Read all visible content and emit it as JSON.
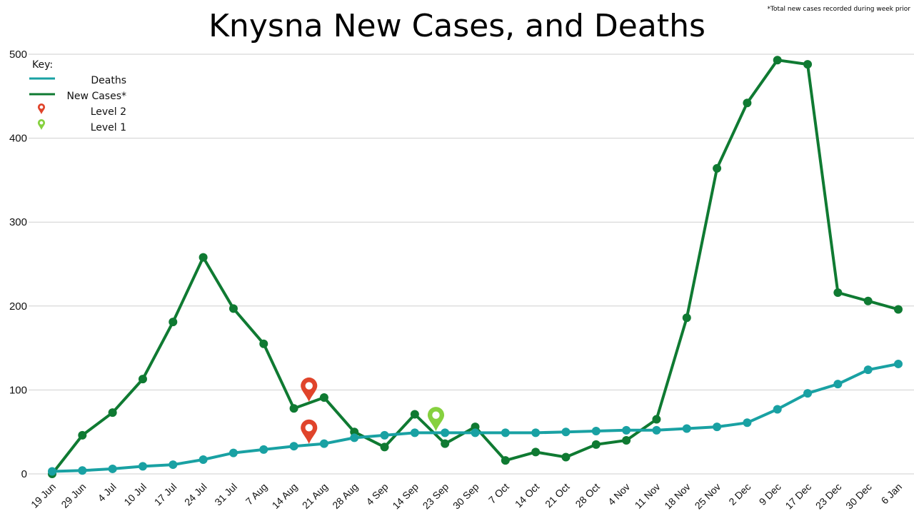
{
  "chart_data": {
    "type": "line",
    "title": "Knysna New Cases, and Deaths",
    "footnote": "*Total new cases recorded during week prior",
    "xlabel": "",
    "ylabel": "",
    "ylim": [
      0,
      500
    ],
    "yticks": [
      0,
      100,
      200,
      300,
      400,
      500
    ],
    "grid": true,
    "legend": {
      "title": "Key:",
      "placement": "top-left",
      "entries": [
        {
          "label": "Deaths",
          "kind": "line",
          "color": "#19a1a3"
        },
        {
          "label": "New Cases*",
          "kind": "line",
          "color": "#0f7a32"
        },
        {
          "label": "Level 2",
          "kind": "marker",
          "color": "#e0442b"
        },
        {
          "label": "Level 1",
          "kind": "marker",
          "color": "#86d13f"
        }
      ]
    },
    "categories": [
      "19 Jun",
      "29 Jun",
      "4 Jul",
      "10 Jul",
      "17 Jul",
      "24 Jul",
      "31 Jul",
      "7 Aug",
      "14 Aug",
      "21 Aug",
      "28 Aug",
      "4 Sep",
      "14 Sep",
      "23 Sep",
      "30 Sep",
      "7 Oct",
      "14 Oct",
      "21 Oct",
      "28 Oct",
      "4 Nov",
      "11 Nov",
      "18 Nov",
      "25 Nov",
      "2 Dec",
      "9 Dec",
      "17 Dec",
      "23 Dec",
      "30 Dec",
      "6 Jan"
    ],
    "series": [
      {
        "name": "Deaths",
        "color": "#19a1a3",
        "values": [
          3,
          4,
          6,
          9,
          11,
          17,
          25,
          29,
          33,
          36,
          43,
          46,
          49,
          49,
          49,
          49,
          49,
          50,
          51,
          52,
          52,
          54,
          56,
          61,
          77,
          96,
          107,
          124,
          131
        ]
      },
      {
        "name": "New Cases*",
        "color": "#0f7a32",
        "values": [
          0,
          46,
          73,
          113,
          181,
          258,
          197,
          155,
          78,
          91,
          50,
          32,
          71,
          36,
          56,
          16,
          26,
          20,
          35,
          40,
          65,
          186,
          364,
          442,
          493,
          488,
          216,
          206,
          196
        ]
      }
    ],
    "annotations": [
      {
        "label": "Level 2",
        "color": "#e0442b",
        "x": "14 Aug",
        "x_offset": 0.5,
        "y": 105
      },
      {
        "label": "Level 2",
        "color": "#e0442b",
        "x": "14 Aug",
        "x_offset": 0.5,
        "y": 55
      },
      {
        "label": "Level 1",
        "color": "#86d13f",
        "x": "14 Sep",
        "x_offset": 0.7,
        "y": 70
      }
    ]
  }
}
